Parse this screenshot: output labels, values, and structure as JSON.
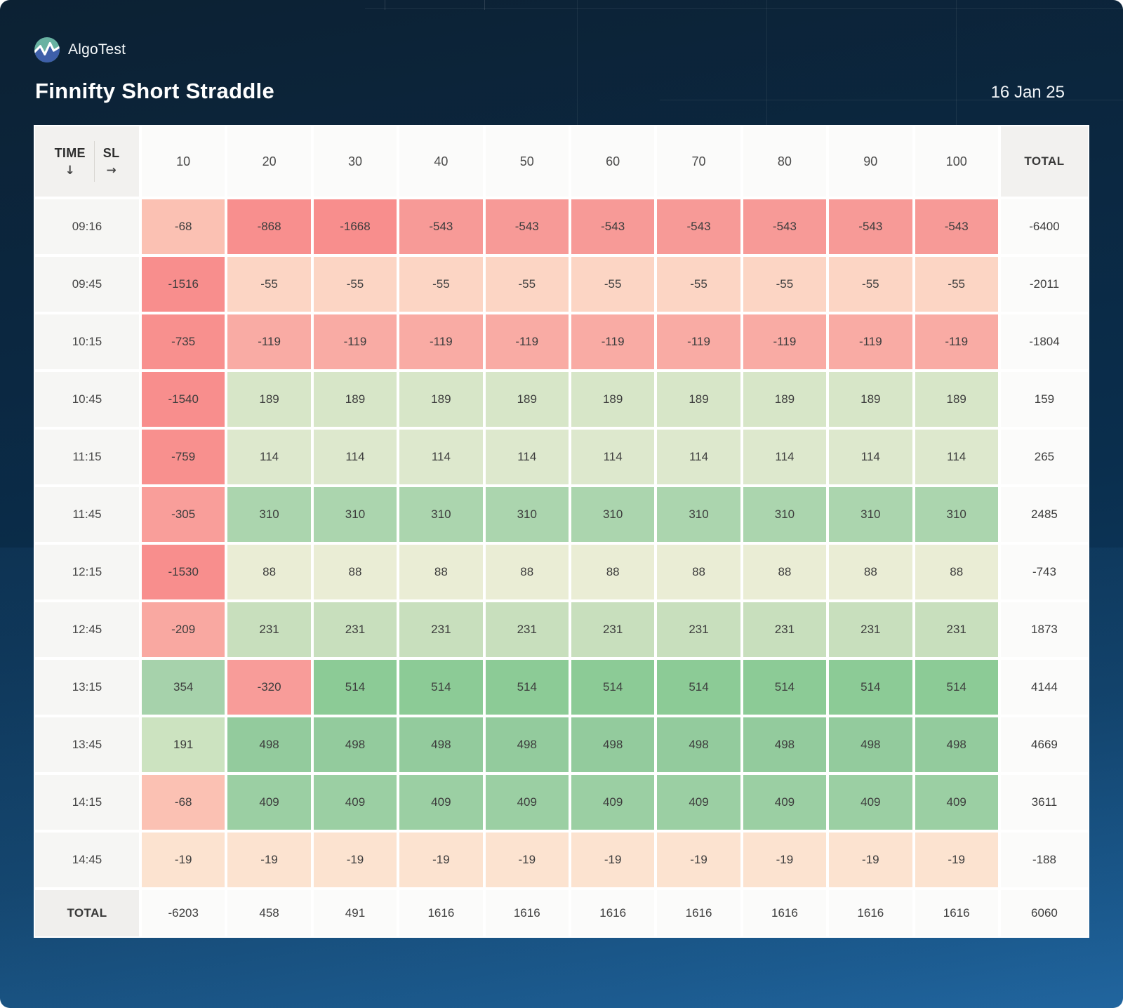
{
  "app": {
    "brand": "AlgoTest"
  },
  "header": {
    "title": "Finnifty Short Straddle",
    "date": "16 Jan 25"
  },
  "table": {
    "corner": {
      "row_label": "TIME",
      "row_arrow": "↓",
      "col_label": "SL",
      "col_arrow": "→"
    },
    "col_headers": [
      "10",
      "20",
      "30",
      "40",
      "50",
      "60",
      "70",
      "80",
      "90",
      "100"
    ],
    "total_header": "TOTAL",
    "rows": [
      {
        "time": "09:16",
        "values": [
          -68,
          -868,
          -1668,
          -543,
          -543,
          -543,
          -543,
          -543,
          -543,
          -543
        ],
        "total": -6400
      },
      {
        "time": "09:45",
        "values": [
          -1516,
          -55,
          -55,
          -55,
          -55,
          -55,
          -55,
          -55,
          -55,
          -55
        ],
        "total": -2011
      },
      {
        "time": "10:15",
        "values": [
          -735,
          -119,
          -119,
          -119,
          -119,
          -119,
          -119,
          -119,
          -119,
          -119
        ],
        "total": -1804
      },
      {
        "time": "10:45",
        "values": [
          -1540,
          189,
          189,
          189,
          189,
          189,
          189,
          189,
          189,
          189
        ],
        "total": 159
      },
      {
        "time": "11:15",
        "values": [
          -759,
          114,
          114,
          114,
          114,
          114,
          114,
          114,
          114,
          114
        ],
        "total": 265
      },
      {
        "time": "11:45",
        "values": [
          -305,
          310,
          310,
          310,
          310,
          310,
          310,
          310,
          310,
          310
        ],
        "total": 2485
      },
      {
        "time": "12:15",
        "values": [
          -1530,
          88,
          88,
          88,
          88,
          88,
          88,
          88,
          88,
          88
        ],
        "total": -743
      },
      {
        "time": "12:45",
        "values": [
          -209,
          231,
          231,
          231,
          231,
          231,
          231,
          231,
          231,
          231
        ],
        "total": 1873
      },
      {
        "time": "13:15",
        "values": [
          354,
          -320,
          514,
          514,
          514,
          514,
          514,
          514,
          514,
          514
        ],
        "total": 4144
      },
      {
        "time": "13:45",
        "values": [
          191,
          498,
          498,
          498,
          498,
          498,
          498,
          498,
          498,
          498
        ],
        "total": 4669
      },
      {
        "time": "14:15",
        "values": [
          -68,
          409,
          409,
          409,
          409,
          409,
          409,
          409,
          409,
          409
        ],
        "total": 3611
      },
      {
        "time": "14:45",
        "values": [
          -19,
          -19,
          -19,
          -19,
          -19,
          -19,
          -19,
          -19,
          -19,
          -19
        ],
        "total": -188
      }
    ],
    "totals": {
      "label": "TOTAL",
      "values": [
        -6203,
        458,
        491,
        1616,
        1616,
        1616,
        1616,
        1616,
        1616,
        1616
      ],
      "grand_total": 6060
    },
    "cell_colors": {
      "-1668": "#f88e8d",
      "-1540": "#f88e8d",
      "-1530": "#f88e8d",
      "-1516": "#f88e8d",
      "-868": "#f88f8e",
      "-759": "#f8908e",
      "-735": "#f8908e",
      "-543": "#f79a97",
      "-320": "#f89c99",
      "-305": "#f99e9a",
      "-209": "#f9a8a1",
      "-119": "#f9aba4",
      "-68": "#fbc1b3",
      "-55": "#fcd5c4",
      "-19": "#fce3d0",
      "88": "#eaedd5",
      "114": "#dde8cd",
      "189": "#d7e6c8",
      "191": "#cce3c0",
      "231": "#c8dfbd",
      "310": "#abd5ae",
      "354": "#a6d2ab",
      "409": "#9bcfa3",
      "498": "#93cb9d",
      "514": "#8ccb96"
    }
  },
  "colors": {
    "background_top": "#0c2133",
    "background_bottom": "#1a5c95",
    "card_background": "#fbfbfa",
    "logo_teal": "#68b2a2",
    "logo_blue": "#3e5fa9",
    "negative_strong": "#f88e8d",
    "positive_strong": "#8ccb96",
    "text_dark": "#3d3d3d",
    "text_light": "#ffffff"
  }
}
